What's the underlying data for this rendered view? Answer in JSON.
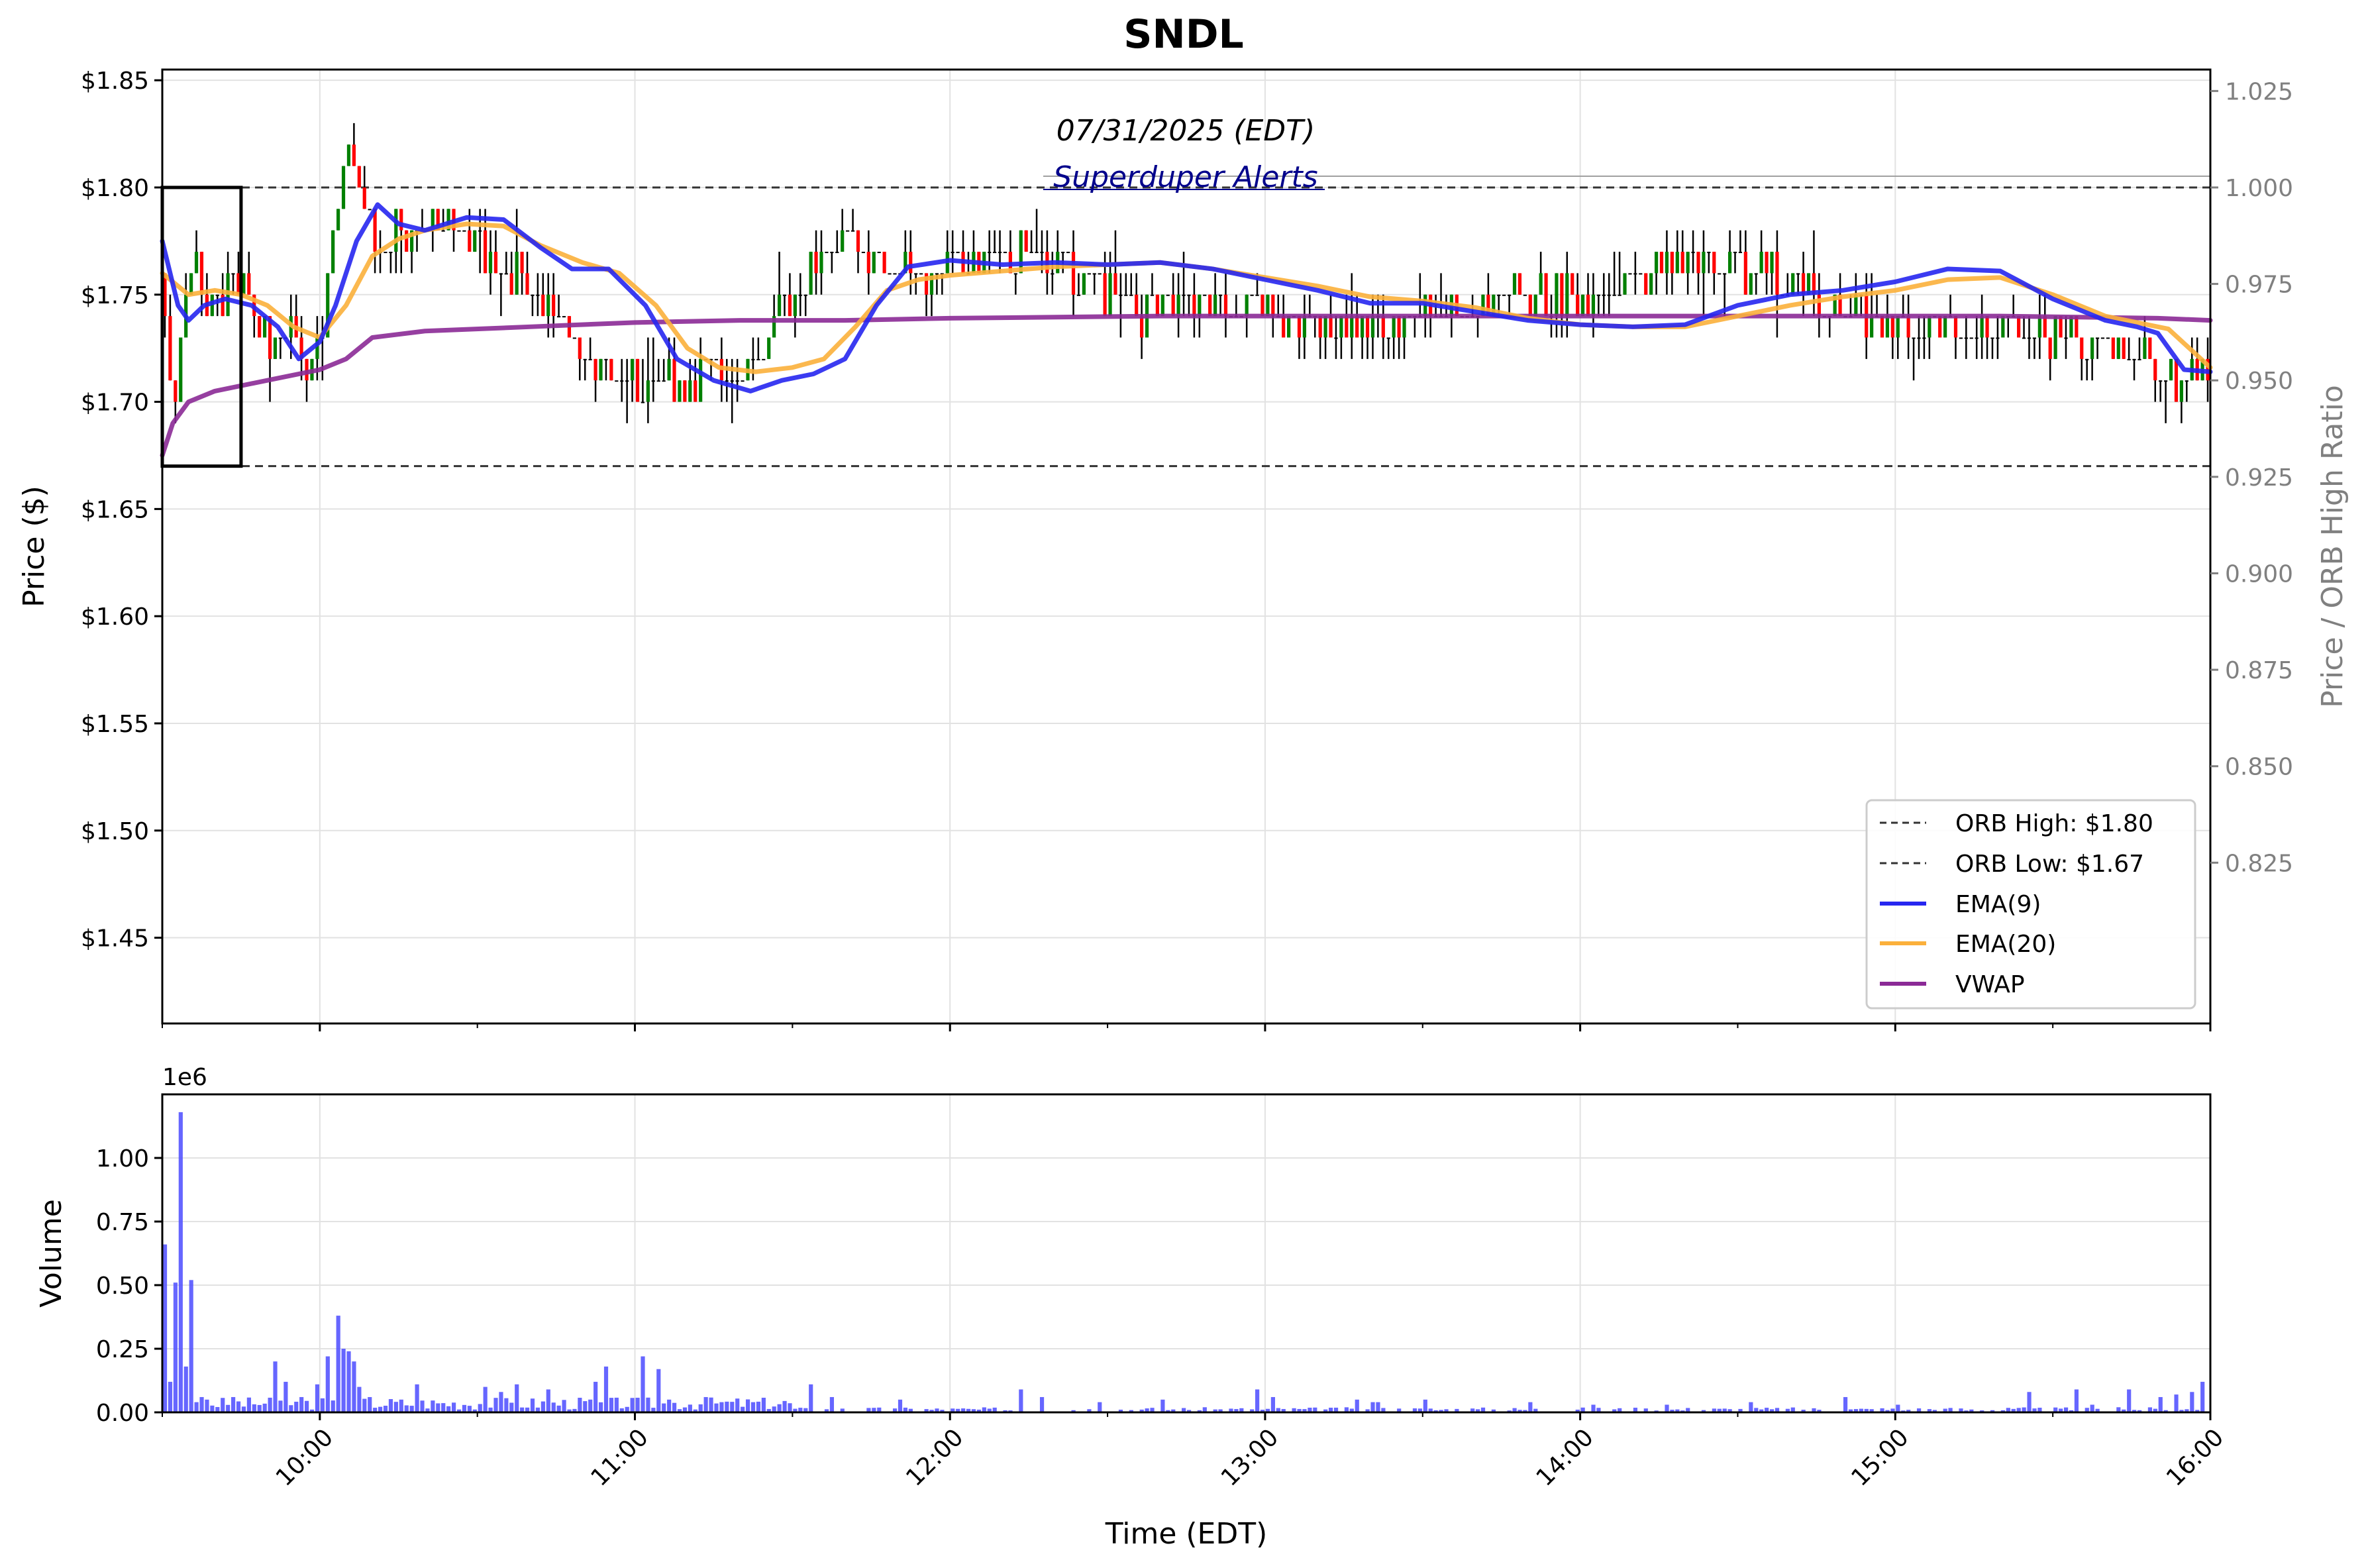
{
  "chart_data": {
    "type": "candlestick",
    "title": "SNDL",
    "subtitle_date": "07/31/2025 (EDT)",
    "watermark": "Superduper Alerts",
    "xlabel": "Time (EDT)",
    "price_ylabel": "Price ($)",
    "ratio_ylabel": "Price / ORB High Ratio",
    "volume_ylabel": "Volume",
    "volume_multiplier": "1e6",
    "x_tick_labels": [
      "10:00",
      "11:00",
      "12:00",
      "13:00",
      "14:00",
      "15:00",
      "16:00"
    ],
    "price_tick_labels": [
      "$1.45",
      "$1.50",
      "$1.55",
      "$1.60",
      "$1.65",
      "$1.70",
      "$1.75",
      "$1.80",
      "$1.85"
    ],
    "price_ticks": [
      1.45,
      1.5,
      1.55,
      1.6,
      1.65,
      1.7,
      1.75,
      1.8,
      1.85
    ],
    "ratio_tick_labels": [
      "0.825",
      "0.850",
      "0.875",
      "0.900",
      "0.925",
      "0.950",
      "0.975",
      "1.000",
      "1.025"
    ],
    "volume_tick_labels": [
      "0.00",
      "0.25",
      "0.50",
      "0.75",
      "1.00"
    ],
    "price_ylim": [
      1.41,
      1.855
    ],
    "volume_ylim": [
      0,
      1.25
    ],
    "x_range_minutes": [
      570,
      960
    ],
    "grid": true,
    "legend_position": "lower-right",
    "legend": [
      "ORB High: $1.80",
      "ORB Low: $1.67",
      "EMA(9)",
      "EMA(20)",
      "VWAP"
    ],
    "orb_high": 1.8,
    "orb_low": 1.67,
    "orb_window_minutes": [
      570,
      585
    ],
    "colors": {
      "up": "#008000",
      "down": "#ff0000",
      "neutral": "#000000",
      "ema9": "#2626f0",
      "ema20": "#fbb03b",
      "vwap": "#8b2a96",
      "volume": "#5555ff",
      "watermark": "#00008b"
    },
    "price_path": {
      "minutes": [
        570,
        572,
        574,
        576,
        579,
        582,
        586,
        590,
        594,
        597,
        600,
        603,
        606,
        609,
        612,
        615,
        620,
        626,
        632,
        638,
        645,
        652,
        658,
        664,
        670,
        676,
        683,
        690,
        695,
        700,
        705,
        712,
        718,
        724,
        728,
        732,
        738,
        746,
        755,
        765,
        775,
        787,
        800,
        812,
        825,
        840,
        850,
        860,
        875,
        890,
        905,
        920,
        935,
        945,
        955,
        960
      ],
      "prices": [
        1.76,
        1.69,
        1.75,
        1.77,
        1.74,
        1.75,
        1.75,
        1.73,
        1.74,
        1.72,
        1.73,
        1.79,
        1.82,
        1.78,
        1.77,
        1.78,
        1.785,
        1.78,
        1.765,
        1.76,
        1.74,
        1.72,
        1.71,
        1.705,
        1.71,
        1.715,
        1.72,
        1.75,
        1.77,
        1.775,
        1.765,
        1.765,
        1.76,
        1.765,
        1.765,
        1.77,
        1.765,
        1.76,
        1.74,
        1.745,
        1.745,
        1.735,
        1.735,
        1.74,
        1.75,
        1.75,
        1.76,
        1.765,
        1.76,
        1.74,
        1.735,
        1.735,
        1.73,
        1.72,
        1.71,
        1.715
      ]
    },
    "ema9": {
      "minutes": [
        570,
        573,
        575,
        578,
        582,
        587,
        592,
        596,
        600,
        603,
        607,
        611,
        615,
        620,
        628,
        635,
        642,
        648,
        655,
        662,
        668,
        675,
        682,
        688,
        694,
        700,
        706,
        712,
        720,
        730,
        740,
        750,
        760,
        770,
        780,
        790,
        800,
        810,
        820,
        830,
        840,
        850,
        860,
        870,
        880,
        890,
        900,
        910,
        920,
        930,
        940,
        946,
        950,
        955,
        960
      ],
      "values": [
        1.775,
        1.745,
        1.738,
        1.745,
        1.748,
        1.745,
        1.735,
        1.72,
        1.728,
        1.745,
        1.775,
        1.792,
        1.783,
        1.78,
        1.786,
        1.785,
        1.772,
        1.762,
        1.762,
        1.745,
        1.72,
        1.71,
        1.705,
        1.71,
        1.713,
        1.72,
        1.745,
        1.763,
        1.766,
        1.764,
        1.765,
        1.764,
        1.765,
        1.762,
        1.757,
        1.752,
        1.746,
        1.746,
        1.742,
        1.738,
        1.736,
        1.735,
        1.736,
        1.745,
        1.75,
        1.752,
        1.756,
        1.762,
        1.761,
        1.748,
        1.738,
        1.735,
        1.732,
        1.715,
        1.714
      ]
    },
    "ema20": {
      "minutes": [
        570,
        575,
        580,
        585,
        590,
        595,
        600,
        605,
        610,
        615,
        620,
        628,
        635,
        642,
        650,
        657,
        664,
        670,
        676,
        683,
        690,
        696,
        702,
        708,
        714,
        720,
        730,
        740,
        750,
        760,
        770,
        780,
        790,
        800,
        810,
        820,
        830,
        840,
        850,
        860,
        870,
        880,
        890,
        900,
        910,
        920,
        930,
        940,
        946,
        952,
        960
      ],
      "values": [
        1.76,
        1.75,
        1.752,
        1.75,
        1.745,
        1.735,
        1.73,
        1.745,
        1.768,
        1.776,
        1.78,
        1.783,
        1.782,
        1.773,
        1.765,
        1.76,
        1.745,
        1.725,
        1.716,
        1.714,
        1.716,
        1.72,
        1.735,
        1.752,
        1.757,
        1.759,
        1.761,
        1.763,
        1.764,
        1.765,
        1.762,
        1.758,
        1.754,
        1.749,
        1.747,
        1.744,
        1.739,
        1.736,
        1.735,
        1.735,
        1.74,
        1.745,
        1.749,
        1.752,
        1.757,
        1.758,
        1.75,
        1.74,
        1.737,
        1.734,
        1.716
      ]
    },
    "vwap": {
      "minutes": [
        570,
        572,
        575,
        580,
        590,
        600,
        605,
        610,
        620,
        640,
        660,
        680,
        700,
        720,
        760,
        800,
        840,
        880,
        920,
        950,
        960
      ],
      "values": [
        1.675,
        1.69,
        1.7,
        1.705,
        1.71,
        1.715,
        1.72,
        1.73,
        1.733,
        1.735,
        1.737,
        1.738,
        1.738,
        1.739,
        1.74,
        1.74,
        1.74,
        1.74,
        1.74,
        1.739,
        1.738
      ]
    },
    "volume_spikes": {
      "minutes": [
        570,
        571,
        572,
        573,
        574,
        575,
        576,
        577,
        578,
        583,
        591,
        593,
        596,
        599,
        601,
        603,
        604,
        605,
        606,
        607,
        609,
        618,
        631,
        634,
        637,
        643,
        652,
        654,
        661,
        664,
        666,
        673,
        676,
        693,
        697,
        710,
        733,
        737,
        748,
        760,
        778,
        781,
        797,
        800,
        801,
        810,
        830,
        842,
        856,
        872,
        890,
        900,
        925,
        934,
        937,
        942,
        944,
        950,
        953,
        956,
        958,
        960
      ],
      "values": [
        0.66,
        0.12,
        0.51,
        1.18,
        0.18,
        0.52,
        0.04,
        0.06,
        0.05,
        0.06,
        0.2,
        0.12,
        0.06,
        0.11,
        0.22,
        0.38,
        0.25,
        0.24,
        0.2,
        0.1,
        0.06,
        0.11,
        0.1,
        0.08,
        0.11,
        0.09,
        0.12,
        0.18,
        0.22,
        0.17,
        0.05,
        0.06,
        0.04,
        0.11,
        0.06,
        0.05,
        0.09,
        0.06,
        0.04,
        0.05,
        0.09,
        0.06,
        0.05,
        0.04,
        0.04,
        0.05,
        0.04,
        0.03,
        0.03,
        0.04,
        0.06,
        0.03,
        0.08,
        0.09,
        0.03,
        0.02,
        0.09,
        0.06,
        0.07,
        0.08,
        0.12,
        0.17
      ]
    }
  }
}
